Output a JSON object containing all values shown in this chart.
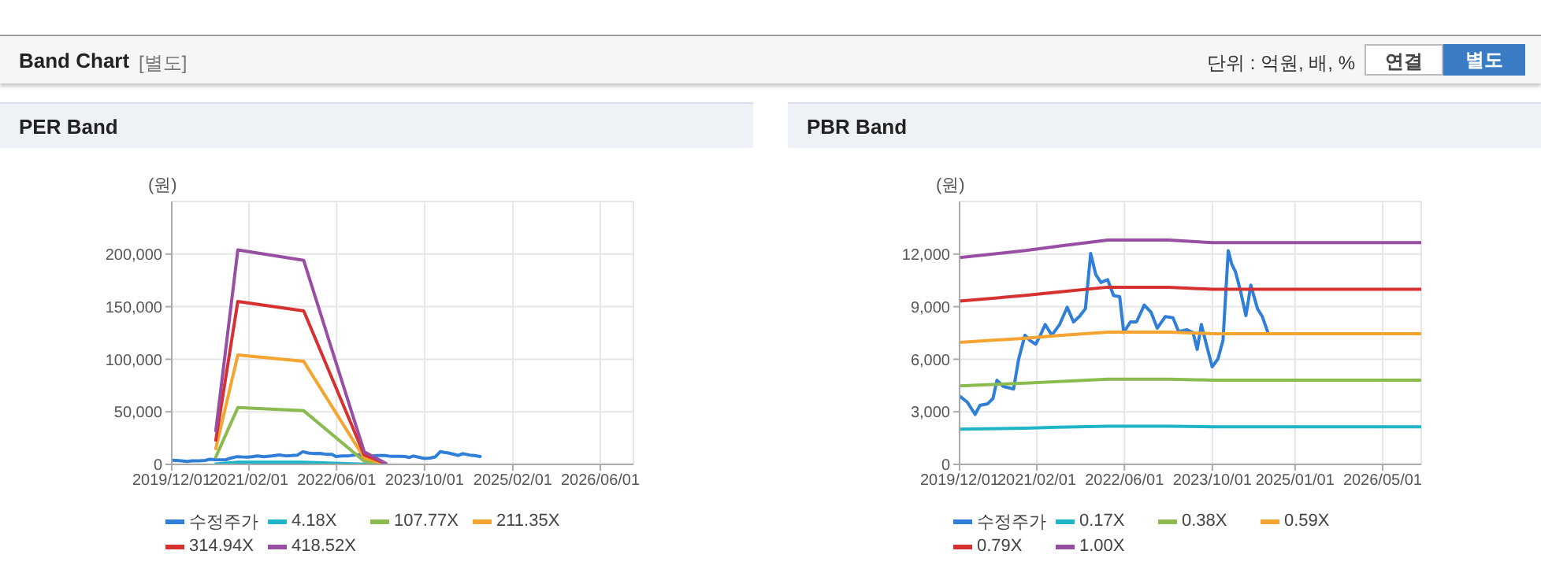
{
  "chart_data": [
    {
      "type": "other",
      "title": "Band Chart",
      "annotations": [
        "[별도]",
        "단위 : 억원, 배, %",
        "연결",
        "별도"
      ]
    },
    {
      "type": "line",
      "title": "PER Band",
      "ylabel": "(원)",
      "grid": true,
      "legend": "bottom",
      "marker": "none",
      "line_style": "solid",
      "xlim": [
        "2019-12-01",
        "2026-12-01"
      ],
      "xticks": [
        {
          "value": "2019-12-01",
          "label": "2019/12/01"
        },
        {
          "value": "2021-02-01",
          "label": "2021/02/01"
        },
        {
          "value": "2022-06-01",
          "label": "2022/06/01"
        },
        {
          "value": "2023-10-01",
          "label": "2023/10/01"
        },
        {
          "value": "2025-02-01",
          "label": "2025/02/01"
        },
        {
          "value": "2026-06-01",
          "label": "2026/06/01"
        }
      ],
      "ylim": [
        0,
        250000
      ],
      "yticks": [
        0,
        {
          "value": 50000,
          "label": "50,000"
        },
        {
          "value": 100000,
          "label": "100,000"
        },
        {
          "value": 150000,
          "label": "150,000"
        },
        {
          "value": 200000,
          "label": "200,000"
        }
      ],
      "series": [
        {
          "name": "수정주가",
          "color": "#2f7ed8",
          "x": [
            "2019-12-01",
            "2020-01-13",
            "2020-02-25",
            "2020-03-23",
            "2020-05-05",
            "2020-06-03",
            "2020-06-25",
            "2020-07-29",
            "2020-09-25",
            "2020-10-23",
            "2020-11-27",
            "2020-12-25",
            "2021-01-26",
            "2021-02-20",
            "2021-03-19",
            "2021-04-25",
            "2021-06-07",
            "2021-07-19",
            "2021-08-23",
            "2021-09-24",
            "2021-10-28",
            "2021-11-26",
            "2021-12-24",
            "2022-01-22",
            "2022-02-28",
            "2022-04-02",
            "2022-05-06",
            "2022-05-28",
            "2022-07-04",
            "2022-08-07",
            "2022-09-19",
            "2022-10-27",
            "2022-11-30",
            "2023-01-13",
            "2023-02-25",
            "2023-03-28",
            "2023-05-13",
            "2023-06-16",
            "2023-07-09",
            "2023-08-01",
            "2023-08-27",
            "2023-09-30",
            "2023-11-01",
            "2023-11-29",
            "2023-12-28",
            "2024-01-16",
            "2024-02-06",
            "2024-03-04",
            "2024-04-04",
            "2024-05-01",
            "2024-06-07",
            "2024-07-04",
            "2024-08-04"
          ],
          "values": [
            3900,
            3550,
            2850,
            3370,
            3460,
            3760,
            4800,
            4450,
            4300,
            6000,
            7370,
            7070,
            6860,
            7370,
            7980,
            7370,
            7980,
            8970,
            8130,
            8430,
            8880,
            12040,
            10840,
            10380,
            10540,
            9630,
            9570,
            7520,
            8130,
            8130,
            9090,
            8670,
            7770,
            8430,
            8370,
            7580,
            7680,
            7520,
            6560,
            7980,
            6920,
            5570,
            6020,
            7070,
            12190,
            11440,
            10990,
            9930,
            8490,
            10230,
            8880,
            8430,
            7520
          ]
        },
        {
          "name": "4.18X",
          "color": "#1fb5c7",
          "x": [
            "2020-08-01",
            "2020-12-01",
            "2021-12-01",
            "2022-11-01",
            "2023-03-01"
          ],
          "values": [
            300,
            2100,
            2000,
            100,
            10
          ]
        },
        {
          "name": "107.77X",
          "color": "#8bbb4f",
          "x": [
            "2020-08-01",
            "2020-12-01",
            "2021-12-01",
            "2022-11-01",
            "2023-03-01"
          ],
          "values": [
            7000,
            54000,
            51000,
            3000,
            300
          ]
        },
        {
          "name": "211.35X",
          "color": "#f5a431",
          "x": [
            "2020-08-01",
            "2020-12-01",
            "2021-12-01",
            "2022-11-01",
            "2023-03-01"
          ],
          "values": [
            15000,
            104000,
            98000,
            6000,
            500
          ]
        },
        {
          "name": "314.94X",
          "color": "#d63030",
          "x": [
            "2020-08-01",
            "2020-12-01",
            "2021-12-01",
            "2022-11-01",
            "2023-03-01"
          ],
          "values": [
            23000,
            155000,
            146000,
            9000,
            700
          ]
        },
        {
          "name": "418.52X",
          "color": "#984ea3",
          "x": [
            "2020-08-01",
            "2020-12-01",
            "2021-12-01",
            "2022-11-01",
            "2023-03-01"
          ],
          "values": [
            32000,
            204000,
            194000,
            12000,
            1000
          ]
        }
      ]
    },
    {
      "type": "line",
      "title": "PBR Band",
      "ylabel": "(원)",
      "grid": true,
      "legend": "bottom",
      "marker": "none",
      "line_style": "solid",
      "xlim": [
        "2019-12-01",
        "2026-12-01"
      ],
      "xticks": [
        {
          "value": "2019-12-01",
          "label": "2019/12/01"
        },
        {
          "value": "2021-02-01",
          "label": "2021/02/01"
        },
        {
          "value": "2022-06-01",
          "label": "2022/06/01"
        },
        {
          "value": "2023-10-01",
          "label": "2023/10/01"
        },
        {
          "value": "2025-01-01",
          "label": "2025/01/01"
        },
        {
          "value": "2026-05-01",
          "label": "2026/05/01"
        }
      ],
      "ylim": [
        0,
        15000
      ],
      "yticks": [
        0,
        {
          "value": 3000,
          "label": "3,000"
        },
        {
          "value": 6000,
          "label": "6,000"
        },
        {
          "value": 9000,
          "label": "9,000"
        },
        {
          "value": 12000,
          "label": "12,000"
        }
      ],
      "series": [
        {
          "name": "수정주가",
          "color": "#2f7ed8",
          "x": [
            "2019-12-01",
            "2020-01-13",
            "2020-02-25",
            "2020-03-23",
            "2020-05-05",
            "2020-06-03",
            "2020-06-25",
            "2020-07-29",
            "2020-09-25",
            "2020-10-23",
            "2020-11-27",
            "2020-12-25",
            "2021-01-26",
            "2021-02-20",
            "2021-03-19",
            "2021-04-25",
            "2021-06-07",
            "2021-07-19",
            "2021-08-23",
            "2021-09-24",
            "2021-10-28",
            "2021-11-26",
            "2021-12-24",
            "2022-01-22",
            "2022-02-28",
            "2022-04-02",
            "2022-05-06",
            "2022-05-28",
            "2022-07-04",
            "2022-08-07",
            "2022-09-19",
            "2022-10-27",
            "2022-11-30",
            "2023-01-13",
            "2023-02-25",
            "2023-03-28",
            "2023-05-13",
            "2023-06-16",
            "2023-07-09",
            "2023-08-01",
            "2023-08-27",
            "2023-09-30",
            "2023-11-01",
            "2023-11-29",
            "2023-12-28",
            "2024-01-16",
            "2024-02-06",
            "2024-03-04",
            "2024-04-04",
            "2024-05-01",
            "2024-06-07",
            "2024-07-04",
            "2024-08-04"
          ],
          "values": [
            3900,
            3550,
            2850,
            3370,
            3460,
            3760,
            4800,
            4450,
            4300,
            6000,
            7370,
            7070,
            6860,
            7370,
            7980,
            7370,
            7980,
            8970,
            8130,
            8430,
            8880,
            12040,
            10840,
            10380,
            10540,
            9630,
            9570,
            7520,
            8130,
            8130,
            9090,
            8670,
            7770,
            8430,
            8370,
            7580,
            7680,
            7520,
            6560,
            7980,
            6920,
            5570,
            6020,
            7070,
            12190,
            11440,
            10990,
            9930,
            8490,
            10230,
            8880,
            8430,
            7520
          ]
        },
        {
          "name": "0.17X",
          "color": "#1fb5c7",
          "x": [
            "2019-12-01",
            "2020-12-01",
            "2021-06-01",
            "2022-03-01",
            "2023-02-01",
            "2023-10-01",
            "2026-12-01"
          ],
          "values": [
            2010,
            2070,
            2120,
            2180,
            2180,
            2150,
            2150
          ]
        },
        {
          "name": "0.38X",
          "color": "#8bbb4f",
          "x": [
            "2019-12-01",
            "2020-12-01",
            "2021-06-01",
            "2022-03-01",
            "2023-02-01",
            "2023-10-01",
            "2026-12-01"
          ],
          "values": [
            4480,
            4640,
            4730,
            4860,
            4860,
            4810,
            4810
          ]
        },
        {
          "name": "0.59X",
          "color": "#f5a431",
          "x": [
            "2019-12-01",
            "2020-12-01",
            "2021-06-01",
            "2022-03-01",
            "2023-02-01",
            "2023-10-01",
            "2026-12-01"
          ],
          "values": [
            6960,
            7200,
            7350,
            7550,
            7550,
            7460,
            7460
          ]
        },
        {
          "name": "0.79X",
          "color": "#d63030",
          "x": [
            "2019-12-01",
            "2020-12-01",
            "2021-06-01",
            "2022-03-01",
            "2023-02-01",
            "2023-10-01",
            "2026-12-01"
          ],
          "values": [
            9320,
            9640,
            9840,
            10110,
            10110,
            9990,
            9990
          ]
        },
        {
          "name": "1.00X",
          "color": "#984ea3",
          "x": [
            "2019-12-01",
            "2020-12-01",
            "2021-06-01",
            "2022-03-01",
            "2023-02-01",
            "2023-10-01",
            "2026-12-01"
          ],
          "values": [
            11800,
            12200,
            12450,
            12800,
            12800,
            12650,
            12650
          ]
        }
      ]
    }
  ]
}
